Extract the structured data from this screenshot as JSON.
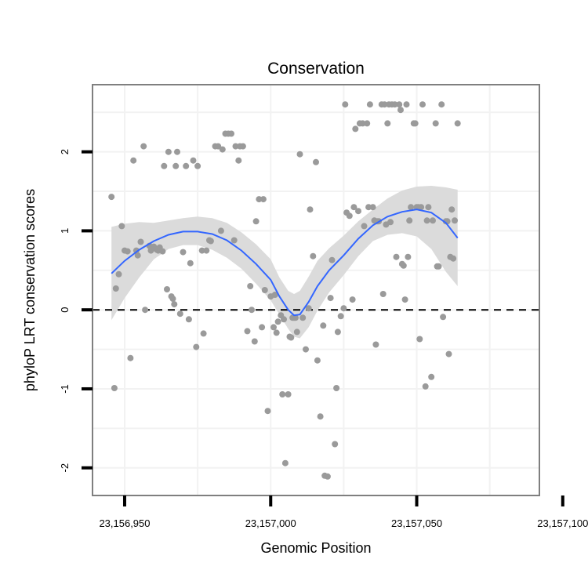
{
  "chart_data": {
    "type": "scatter",
    "title": "Conservation",
    "xlabel": "Genomic Position",
    "ylabel": "phyloP LRT conservation scores",
    "xlim": [
      23156939,
      23157092
    ],
    "ylim": [
      -2.35,
      2.85
    ],
    "x_ticks": [
      23156950,
      23157000,
      23157050,
      23157100
    ],
    "x_tick_labels": [
      "23,156,950",
      "23,157,000",
      "23,157,050",
      "23,157,100"
    ],
    "y_ticks": [
      -2,
      -1,
      0,
      1,
      2
    ],
    "y_tick_labels": [
      "-2",
      "-1",
      "0",
      "1",
      "2"
    ],
    "grid": true,
    "legend": "none",
    "reference_line": {
      "y": 0,
      "style": "dashed"
    },
    "colors": {
      "points": "#9a9a9a",
      "smooth": "#3366ff",
      "ribbon": "#d9d9d9",
      "panel_border": "#7f7f7f",
      "grid": "#f2f2f2"
    },
    "series": [
      {
        "type": "scatter",
        "points": [
          [
            23156945.5,
            1.43
          ],
          [
            23156946.5,
            -0.99
          ],
          [
            23156947,
            0.27
          ],
          [
            23156948,
            0.45
          ],
          [
            23156949,
            1.06
          ],
          [
            23156950,
            0.75
          ],
          [
            23156951,
            0.74
          ],
          [
            23156952,
            -0.61
          ],
          [
            23156953,
            1.89
          ],
          [
            23156954,
            0.75
          ],
          [
            23156954.5,
            0.69
          ],
          [
            23156955.5,
            0.86
          ],
          [
            23156956.5,
            2.07
          ],
          [
            23156957,
            0.0
          ],
          [
            23156958.5,
            0.81
          ],
          [
            23156959,
            0.75
          ],
          [
            23156960,
            0.8
          ],
          [
            23156961,
            0.76
          ],
          [
            23156961.5,
            0.75
          ],
          [
            23156962,
            0.79
          ],
          [
            23156963,
            0.74
          ],
          [
            23156963.5,
            1.82
          ],
          [
            23156964.5,
            0.26
          ],
          [
            23156965,
            2.0
          ],
          [
            23156966,
            0.17
          ],
          [
            23156966.5,
            0.14
          ],
          [
            23156967,
            0.07
          ],
          [
            23156967.5,
            1.82
          ],
          [
            23156968,
            2.0
          ],
          [
            23156969,
            -0.05
          ],
          [
            23156970,
            0.73
          ],
          [
            23156971,
            1.82
          ],
          [
            23156972,
            -0.12
          ],
          [
            23156972.5,
            0.59
          ],
          [
            23156973.5,
            1.89
          ],
          [
            23156974.5,
            -0.47
          ],
          [
            23156975,
            1.82
          ],
          [
            23156976.5,
            0.75
          ],
          [
            23156977,
            -0.3
          ],
          [
            23156978,
            0.75
          ],
          [
            23156979,
            0.88
          ],
          [
            23156979.5,
            0.87
          ],
          [
            23156981,
            2.07
          ],
          [
            23156982,
            2.07
          ],
          [
            23156983,
            1.0
          ],
          [
            23156983.5,
            2.03
          ],
          [
            23156984.5,
            2.23
          ],
          [
            23156985.5,
            2.23
          ],
          [
            23156986.5,
            2.23
          ],
          [
            23156987.5,
            0.88
          ],
          [
            23156988,
            2.07
          ],
          [
            23156989,
            1.89
          ],
          [
            23156989.5,
            2.07
          ],
          [
            23156990.5,
            2.07
          ],
          [
            23156992,
            -0.27
          ],
          [
            23156993,
            0.3
          ],
          [
            23156993.5,
            0.0
          ],
          [
            23156994.5,
            -0.4
          ],
          [
            23156995,
            1.12
          ],
          [
            23156996,
            1.4
          ],
          [
            23156997,
            -0.22
          ],
          [
            23156997.5,
            1.4
          ],
          [
            23156998,
            0.25
          ],
          [
            23156999,
            -1.28
          ],
          [
            23157000,
            0.17
          ],
          [
            23157001,
            -0.22
          ],
          [
            23157001.5,
            0.19
          ],
          [
            23157002,
            -0.29
          ],
          [
            23157002.5,
            -0.15
          ],
          [
            23157003.5,
            -0.07
          ],
          [
            23157004,
            -1.07
          ],
          [
            23157004.5,
            -0.12
          ],
          [
            23157005,
            -1.94
          ],
          [
            23157006,
            -1.07
          ],
          [
            23157006.5,
            -0.34
          ],
          [
            23157007,
            -0.35
          ],
          [
            23157007.5,
            -0.1
          ],
          [
            23157008,
            -0.1
          ],
          [
            23157008.5,
            -0.1
          ],
          [
            23157009,
            -0.28
          ],
          [
            23157010,
            1.97
          ],
          [
            23157011,
            -0.1
          ],
          [
            23157012,
            -0.5
          ],
          [
            23157013,
            0.02
          ],
          [
            23157013.5,
            1.27
          ],
          [
            23157014.5,
            0.68
          ],
          [
            23157015.5,
            1.87
          ],
          [
            23157016,
            -0.64
          ],
          [
            23157017,
            -1.35
          ],
          [
            23157018,
            -0.2
          ],
          [
            23157018.5,
            -2.1
          ],
          [
            23157019.5,
            -2.11
          ],
          [
            23157020.5,
            0.15
          ],
          [
            23157021,
            0.63
          ],
          [
            23157022,
            -1.7
          ],
          [
            23157022.5,
            -0.99
          ],
          [
            23157023,
            -0.28
          ],
          [
            23157024,
            -0.08
          ],
          [
            23157025,
            0.02
          ],
          [
            23157025.5,
            2.6
          ],
          [
            23157026,
            1.23
          ],
          [
            23157027,
            1.19
          ],
          [
            23157028,
            0.13
          ],
          [
            23157028.5,
            1.3
          ],
          [
            23157029,
            2.29
          ],
          [
            23157030,
            1.25
          ],
          [
            23157030.5,
            2.36
          ],
          [
            23157031.5,
            2.36
          ],
          [
            23157032,
            1.06
          ],
          [
            23157033,
            2.36
          ],
          [
            23157033.5,
            1.3
          ],
          [
            23157034,
            2.6
          ],
          [
            23157035,
            1.3
          ],
          [
            23157035.5,
            1.13
          ],
          [
            23157036,
            -0.44
          ],
          [
            23157036.5,
            1.12
          ],
          [
            23157037,
            1.12
          ],
          [
            23157038,
            2.6
          ],
          [
            23157038.5,
            0.2
          ],
          [
            23157039,
            2.6
          ],
          [
            23157039.5,
            1.08
          ],
          [
            23157040,
            2.36
          ],
          [
            23157040.5,
            2.6
          ],
          [
            23157041,
            1.11
          ],
          [
            23157041.5,
            2.6
          ],
          [
            23157042.5,
            2.6
          ],
          [
            23157043,
            0.67
          ],
          [
            23157044,
            2.6
          ],
          [
            23157044.5,
            2.53
          ],
          [
            23157045,
            0.58
          ],
          [
            23157045.5,
            0.56
          ],
          [
            23157046,
            0.13
          ],
          [
            23157046.5,
            2.6
          ],
          [
            23157047,
            0.67
          ],
          [
            23157047.5,
            1.13
          ],
          [
            23157048,
            1.3
          ],
          [
            23157049,
            2.36
          ],
          [
            23157049.5,
            2.36
          ],
          [
            23157050,
            1.3
          ],
          [
            23157050.5,
            1.3
          ],
          [
            23157051,
            -0.37
          ],
          [
            23157051.5,
            1.3
          ],
          [
            23157052,
            2.6
          ],
          [
            23157053,
            -0.97
          ],
          [
            23157053.5,
            1.13
          ],
          [
            23157054,
            1.3
          ],
          [
            23157055,
            -0.85
          ],
          [
            23157055.5,
            1.13
          ],
          [
            23157056.5,
            2.36
          ],
          [
            23157057,
            0.55
          ],
          [
            23157057.5,
            0.55
          ],
          [
            23157058.5,
            2.6
          ],
          [
            23157059,
            -0.09
          ],
          [
            23157060,
            1.12
          ],
          [
            23157060.5,
            1.12
          ],
          [
            23157061,
            -0.56
          ],
          [
            23157061.5,
            0.67
          ],
          [
            23157062,
            1.27
          ],
          [
            23157062.5,
            0.65
          ],
          [
            23157063,
            1.13
          ],
          [
            23157064,
            2.36
          ]
        ]
      },
      {
        "type": "smooth",
        "x": [
          23156945.5,
          23156950,
          23156955,
          23156960,
          23156965,
          23156970,
          23156975,
          23156980,
          23156985,
          23156990,
          23156995,
          23157000,
          23157003,
          23157006,
          23157008,
          23157010,
          23157013,
          23157016,
          23157020,
          23157025,
          23157030,
          23157035,
          23157040,
          23157045,
          23157050,
          23157055,
          23157060,
          23157064
        ],
        "y": [
          0.46,
          0.62,
          0.76,
          0.87,
          0.95,
          0.99,
          0.99,
          0.96,
          0.88,
          0.75,
          0.58,
          0.38,
          0.17,
          0.0,
          -0.07,
          -0.06,
          0.1,
          0.3,
          0.5,
          0.69,
          0.9,
          1.07,
          1.18,
          1.24,
          1.27,
          1.23,
          1.1,
          0.91
        ],
        "lower": [
          -0.13,
          0.15,
          0.41,
          0.64,
          0.77,
          0.82,
          0.82,
          0.76,
          0.66,
          0.52,
          0.33,
          0.12,
          -0.06,
          -0.24,
          -0.34,
          -0.36,
          -0.22,
          -0.01,
          0.22,
          0.44,
          0.68,
          0.87,
          0.95,
          0.97,
          0.93,
          0.77,
          0.48,
          0.3
        ],
        "upper": [
          1.05,
          1.09,
          1.11,
          1.1,
          1.13,
          1.16,
          1.18,
          1.16,
          1.1,
          0.98,
          0.83,
          0.64,
          0.41,
          0.24,
          0.2,
          0.24,
          0.42,
          0.62,
          0.78,
          0.94,
          1.12,
          1.27,
          1.41,
          1.51,
          1.56,
          1.57,
          1.55,
          1.52
        ]
      }
    ]
  }
}
